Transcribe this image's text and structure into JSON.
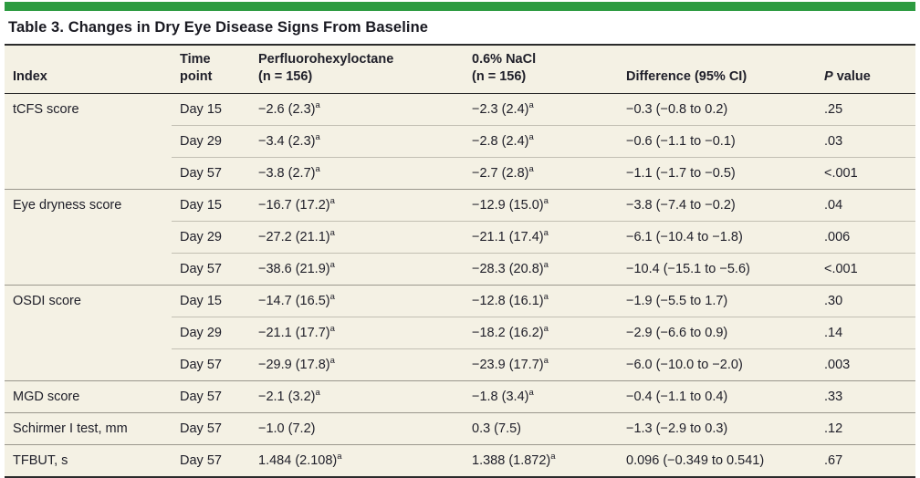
{
  "accent_color": "#2d9b41",
  "table_background": "#f4f1e4",
  "title": "Table 3. Changes in Dry Eye Disease Signs From Baseline",
  "header": {
    "index": "Index",
    "time_line1": "Time",
    "time_line2": "point",
    "drug_line1": "Perfluorohexyloctane",
    "drug_line2": "(n = 156)",
    "control_line1": "0.6% NaCl",
    "control_line2": "(n = 156)",
    "difference": "Difference (95% CI)",
    "p_italic": "P",
    "p_rest": " value"
  },
  "table": {
    "groups": [
      {
        "index": "tCFS score",
        "rows": [
          {
            "time": "Day 15",
            "drug": "−2.6 (2.3)",
            "drug_sup": "a",
            "control": "−2.3 (2.4)",
            "control_sup": "a",
            "diff": "−0.3 (−0.8 to 0.2)",
            "p": ".25"
          },
          {
            "time": "Day 29",
            "drug": "−3.4 (2.3)",
            "drug_sup": "a",
            "control": "−2.8 (2.4)",
            "control_sup": "a",
            "diff": "−0.6 (−1.1 to −0.1)",
            "p": ".03"
          },
          {
            "time": "Day 57",
            "drug": "−3.8 (2.7)",
            "drug_sup": "a",
            "control": "−2.7 (2.8)",
            "control_sup": "a",
            "diff": "−1.1 (−1.7 to −0.5)",
            "p": "<.001"
          }
        ]
      },
      {
        "index": "Eye dryness score",
        "rows": [
          {
            "time": "Day 15",
            "drug": "−16.7 (17.2)",
            "drug_sup": "a",
            "control": "−12.9 (15.0)",
            "control_sup": "a",
            "diff": "−3.8 (−7.4 to −0.2)",
            "p": ".04"
          },
          {
            "time": "Day 29",
            "drug": "−27.2 (21.1)",
            "drug_sup": "a",
            "control": "−21.1 (17.4)",
            "control_sup": "a",
            "diff": "−6.1 (−10.4 to −1.8)",
            "p": ".006"
          },
          {
            "time": "Day 57",
            "drug": "−38.6 (21.9)",
            "drug_sup": "a",
            "control": "−28.3 (20.8)",
            "control_sup": "a",
            "diff": "−10.4 (−15.1 to −5.6)",
            "p": "<.001"
          }
        ]
      },
      {
        "index": "OSDI score",
        "rows": [
          {
            "time": "Day 15",
            "drug": "−14.7 (16.5)",
            "drug_sup": "a",
            "control": "−12.8 (16.1)",
            "control_sup": "a",
            "diff": "−1.9 (−5.5 to 1.7)",
            "p": ".30"
          },
          {
            "time": "Day 29",
            "drug": "−21.1 (17.7)",
            "drug_sup": "a",
            "control": "−18.2 (16.2)",
            "control_sup": "a",
            "diff": "−2.9 (−6.6 to 0.9)",
            "p": ".14"
          },
          {
            "time": "Day 57",
            "drug": "−29.9 (17.8)",
            "drug_sup": "a",
            "control": "−23.9 (17.7)",
            "control_sup": "a",
            "diff": "−6.0 (−10.0 to −2.0)",
            "p": ".003"
          }
        ]
      },
      {
        "index": "MGD score",
        "rows": [
          {
            "time": "Day 57",
            "drug": "−2.1 (3.2)",
            "drug_sup": "a",
            "control": "−1.8 (3.4)",
            "control_sup": "a",
            "diff": "−0.4 (−1.1 to 0.4)",
            "p": ".33"
          }
        ]
      },
      {
        "index": "Schirmer I test, mm",
        "rows": [
          {
            "time": "Day 57",
            "drug": "−1.0 (7.2)",
            "drug_sup": "",
            "control": "0.3 (7.5)",
            "control_sup": "",
            "diff": "−1.3 (−2.9 to 0.3)",
            "p": ".12"
          }
        ]
      },
      {
        "index": "TFBUT, s",
        "rows": [
          {
            "time": "Day 57",
            "drug": "1.484 (2.108)",
            "drug_sup": "a",
            "control": "1.388 (1.872)",
            "control_sup": "a",
            "diff": "0.096 (−0.349 to 0.541)",
            "p": ".67"
          }
        ]
      }
    ]
  }
}
